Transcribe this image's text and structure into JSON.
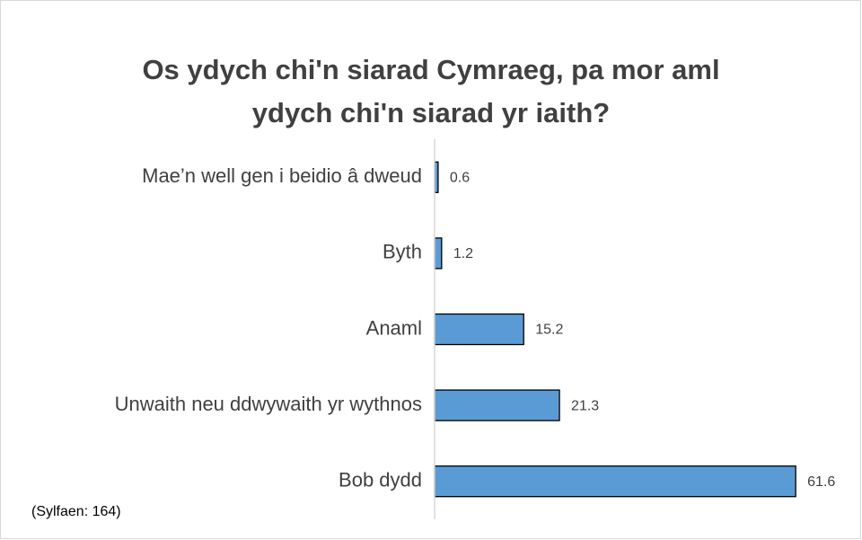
{
  "chart_data": {
    "type": "barh",
    "title": [
      "Os ydych chi'n siarad Cymraeg, pa mor aml",
      "ydych chi'n siarad yr iaith?"
    ],
    "categories": [
      "Mae’n well gen i beidio â dweud",
      "Byth",
      "Anaml",
      "Unwaith neu ddwywaith yr wythnos",
      "Bob dydd"
    ],
    "values": [
      0.6,
      1.2,
      15.2,
      21.3,
      61.6
    ],
    "color": "#5b9bd5",
    "xlim": [
      0,
      70
    ],
    "annotation": "(Sylfaen: 164)"
  }
}
